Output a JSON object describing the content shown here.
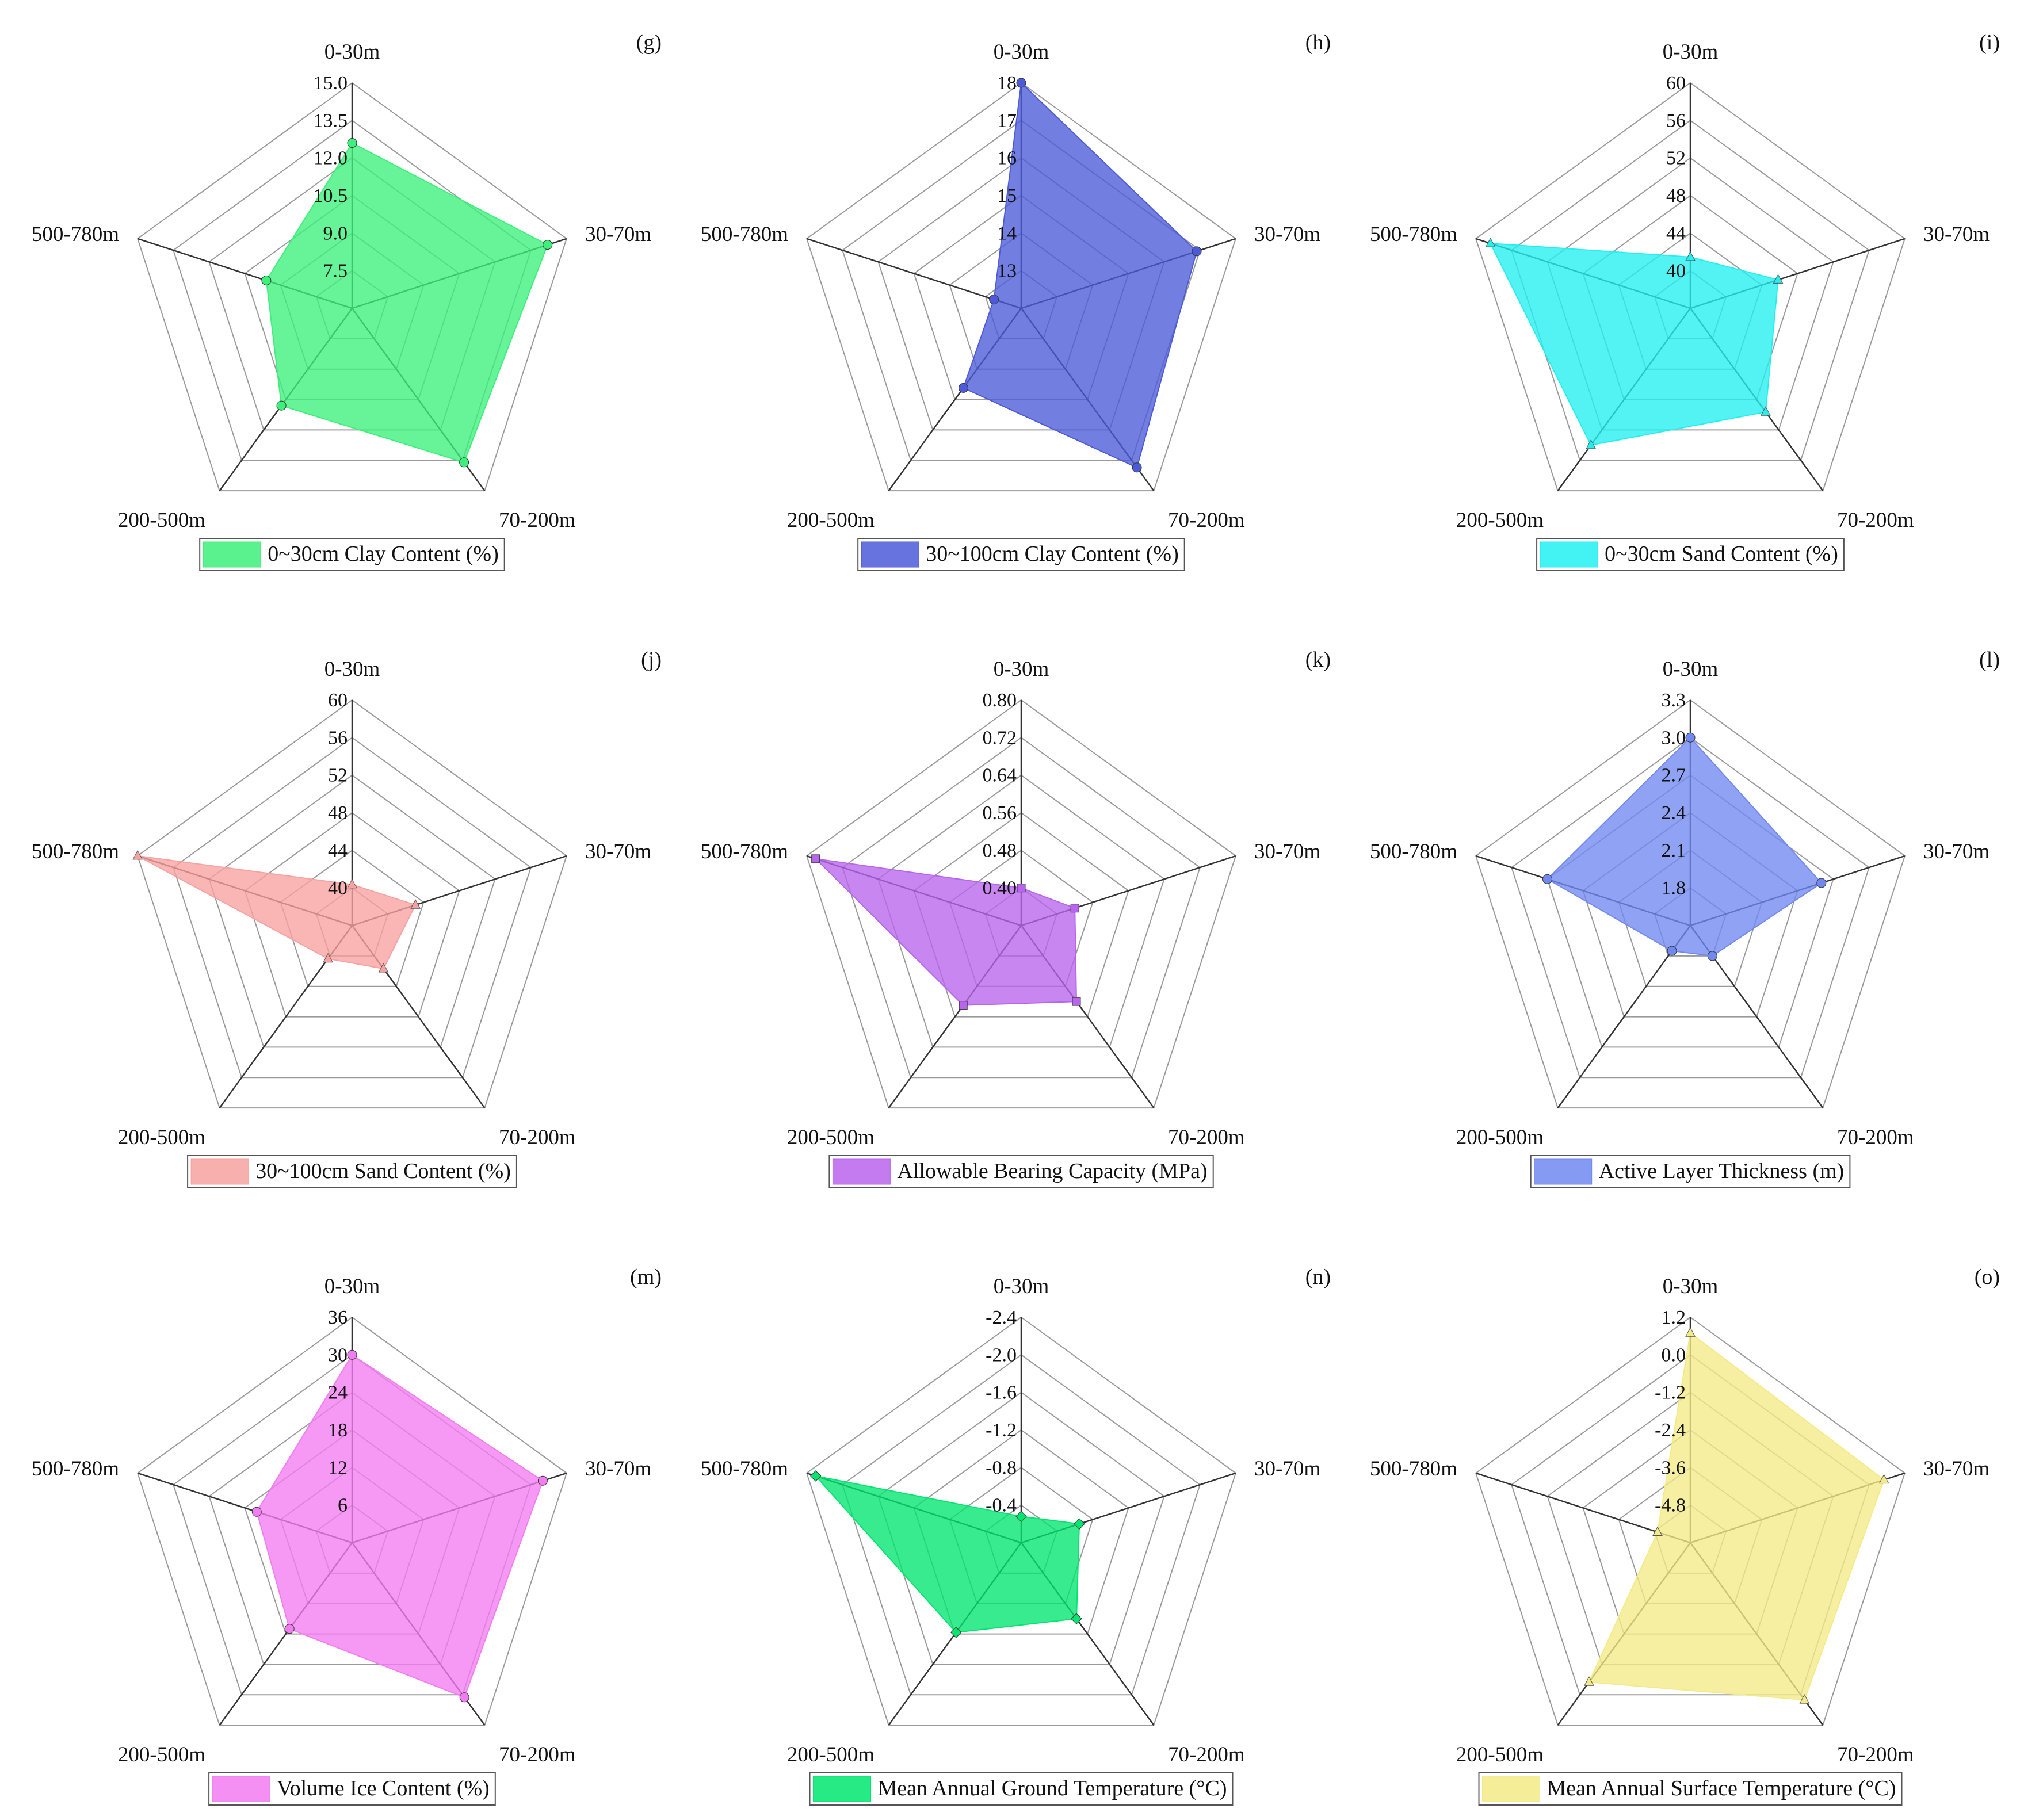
{
  "figure": {
    "axes": [
      "0-30m",
      "30-70m",
      "70-200m",
      "200-500m",
      "500-780m"
    ]
  },
  "chart_data": [
    {
      "tag": "(g)",
      "type": "radar",
      "legend": "0~30cm Clay Content (%)",
      "color": "#3cf07a",
      "marker": "circle",
      "rmin": 6.0,
      "rmax": 15.0,
      "ticks": [
        "7.5",
        "9.0",
        "10.5",
        "12.0",
        "13.5",
        "15.0"
      ],
      "tick_values": [
        7.5,
        9.0,
        10.5,
        12.0,
        13.5,
        15.0
      ],
      "categories": [
        "0-30m",
        "30-70m",
        "70-200m",
        "200-500m",
        "500-780m"
      ],
      "values": [
        12.6,
        14.2,
        13.6,
        10.8,
        9.6
      ]
    },
    {
      "tag": "(h)",
      "type": "radar",
      "legend": "30~100cm Clay Content (%)",
      "color": "#4c5ad8",
      "marker": "circle",
      "rmin": 12.5,
      "rmax": 18.0,
      "ticks": [
        "13",
        "14",
        "15",
        "16",
        "17",
        "18"
      ],
      "tick_values": [
        13,
        14,
        15,
        16,
        17,
        18
      ],
      "categories": [
        "0-30m",
        "30-70m",
        "70-200m",
        "200-500m",
        "500-780m"
      ],
      "values": [
        18.0,
        17.0,
        17.3,
        14.9,
        13.2
      ]
    },
    {
      "tag": "(i)",
      "type": "radar",
      "legend": "0~30cm Sand Content (%)",
      "color": "#22f0f0",
      "marker": "triangle",
      "rmin": 38,
      "rmax": 60,
      "ticks": [
        "40",
        "44",
        "48",
        "52",
        "56",
        "60"
      ],
      "tick_values": [
        40,
        44,
        48,
        52,
        56,
        60
      ],
      "categories": [
        "0-30m",
        "30-70m",
        "70-200m",
        "200-500m",
        "500-780m"
      ],
      "values": [
        43.0,
        47.0,
        50.5,
        54.5,
        58.5
      ]
    },
    {
      "tag": "(j)",
      "type": "radar",
      "legend": "30~100cm Sand Content (%)",
      "color": "#f7a2a0",
      "marker": "triangle",
      "rmin": 38,
      "rmax": 60,
      "ticks": [
        "40",
        "44",
        "48",
        "52",
        "56",
        "60"
      ],
      "tick_values": [
        40,
        44,
        48,
        52,
        56,
        60
      ],
      "categories": [
        "0-30m",
        "30-70m",
        "70-200m",
        "200-500m",
        "500-780m"
      ],
      "values": [
        42.0,
        44.5,
        43.2,
        42.0,
        60.0
      ]
    },
    {
      "tag": "(k)",
      "type": "radar",
      "legend": "Allowable Bearing Capacity (MPa)",
      "color": "#b864ec",
      "marker": "square",
      "rmin": 0.32,
      "rmax": 0.8,
      "ticks": [
        "0.40",
        "0.48",
        "0.56",
        "0.64",
        "0.72",
        "0.80"
      ],
      "tick_values": [
        0.4,
        0.48,
        0.56,
        0.64,
        0.72,
        0.8
      ],
      "categories": [
        "0-30m",
        "30-70m",
        "70-200m",
        "200-500m",
        "500-780m"
      ],
      "values": [
        0.4,
        0.44,
        0.52,
        0.53,
        0.78
      ]
    },
    {
      "tag": "(l)",
      "type": "radar",
      "legend": "Active Layer Thickness (m)",
      "color": "#7088f0",
      "marker": "circle",
      "rmin": 1.5,
      "rmax": 3.3,
      "ticks": [
        "1.8",
        "2.1",
        "2.4",
        "2.7",
        "3.0",
        "3.3"
      ],
      "tick_values": [
        1.8,
        2.1,
        2.4,
        2.7,
        3.0,
        3.3
      ],
      "categories": [
        "0-30m",
        "30-70m",
        "70-200m",
        "200-500m",
        "500-780m"
      ],
      "values": [
        3.0,
        2.6,
        1.8,
        1.75,
        2.7
      ]
    },
    {
      "tag": "(m)",
      "type": "radar",
      "legend": "Volume Ice Content (%)",
      "color": "#f27cf2",
      "marker": "circle",
      "rmin": 0,
      "rmax": 36,
      "ticks": [
        "6",
        "12",
        "18",
        "24",
        "30",
        "36"
      ],
      "tick_values": [
        6,
        12,
        18,
        24,
        30,
        36
      ],
      "categories": [
        "0-30m",
        "30-70m",
        "70-200m",
        "200-500m",
        "500-780m"
      ],
      "values": [
        30.0,
        32.0,
        30.5,
        17.0,
        16.0
      ]
    },
    {
      "tag": "(n)",
      "type": "radar",
      "legend": "Mean Annual Ground Temperature (°C)",
      "color": "#00e66e",
      "marker": "diamond",
      "rmin": 0,
      "rmax": -2.4,
      "ticks": [
        "-0.4",
        "-0.8",
        "-1.2",
        "-1.6",
        "-2.0",
        "-2.4"
      ],
      "tick_values": [
        -0.4,
        -0.8,
        -1.2,
        -1.6,
        -2.0,
        -2.4
      ],
      "categories": [
        "0-30m",
        "30-70m",
        "70-200m",
        "200-500m",
        "500-780m"
      ],
      "values": [
        -0.28,
        -0.65,
        -1.0,
        -1.18,
        -2.3
      ]
    },
    {
      "tag": "(o)",
      "type": "radar",
      "legend": "Mean Annual Surface Temperature (°C)",
      "color": "#f4ea86",
      "marker": "triangle",
      "rmin": -6.0,
      "rmax": 1.2,
      "ticks": [
        "-4.8",
        "-3.6",
        "-2.4",
        "-1.2",
        "0.0",
        "1.2"
      ],
      "tick_values": [
        -4.8,
        -3.6,
        -2.4,
        -1.2,
        0.0,
        1.2
      ],
      "categories": [
        "0-30m",
        "30-70m",
        "70-200m",
        "200-500m",
        "500-780m"
      ],
      "values": [
        0.7,
        0.5,
        0.2,
        -0.5,
        -4.9
      ]
    }
  ]
}
